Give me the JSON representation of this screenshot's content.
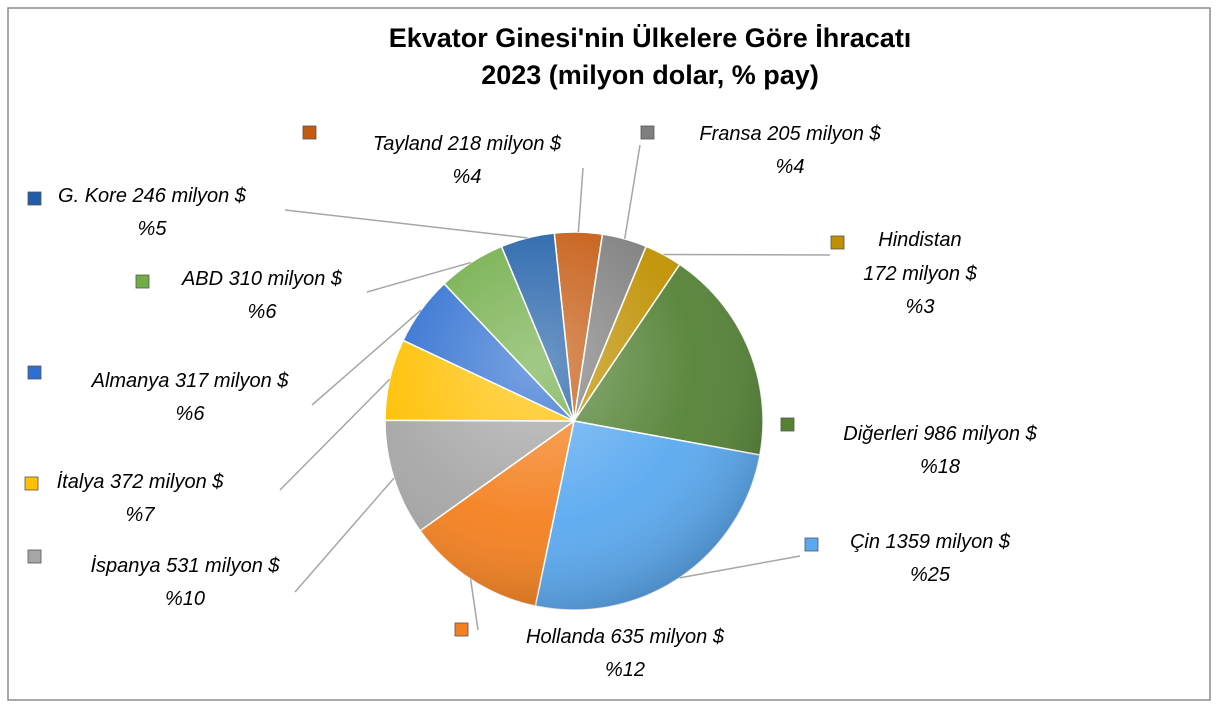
{
  "chart_data": {
    "type": "pie",
    "title": "Ekvator Ginesi'nin Ülkelere Göre İhracatı",
    "subtitle": "2023 (milyon dolar, % pay)",
    "categories": [
      "Tayland",
      "Fransa",
      "Hindistan",
      "Diğerleri",
      "Çin",
      "Hollanda",
      "İspanya",
      "İtalya",
      "Almanya",
      "ABD",
      "G. Kore"
    ],
    "values": [
      218,
      205,
      172,
      986,
      1359,
      635,
      531,
      372,
      317,
      310,
      246
    ],
    "value_labels": [
      "218 milyon $",
      "205 milyon $",
      "172 milyon $",
      "986 milyon $",
      "1359 milyon $",
      "635 milyon $",
      "531 milyon $",
      "372 milyon $",
      "317 milyon $",
      "310 milyon $",
      "246 milyon $"
    ],
    "percentages": [
      4,
      4,
      3,
      18,
      25,
      12,
      10,
      7,
      6,
      6,
      5
    ],
    "percentage_labels": [
      "%4",
      "%4",
      "%3",
      "%18",
      "%25",
      "%12",
      "%10",
      "%7",
      "%6",
      "%6",
      "%5"
    ],
    "colors": [
      "#c55a11",
      "#7f7f7f",
      "#bf9000",
      "#548235",
      "#5aa9f0",
      "#f4801f",
      "#a6a6a6",
      "#ffc000",
      "#2f6fd1",
      "#70ad47",
      "#1f5fa8"
    ]
  }
}
